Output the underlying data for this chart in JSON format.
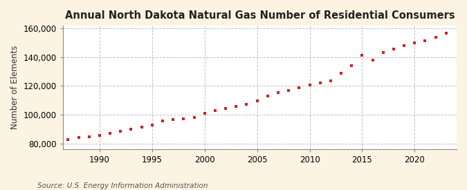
{
  "title": "Annual North Dakota Natural Gas Number of Residential Consumers",
  "ylabel": "Number of Elements",
  "source": "Source: U.S. Energy Information Administration",
  "background_color": "#fdf3e3",
  "plot_area_color": "#ffffff",
  "marker_color": "#cc2222",
  "grid_color": "#bbbbbb",
  "years": [
    1987,
    1988,
    1989,
    1990,
    1991,
    1992,
    1993,
    1994,
    1995,
    1996,
    1997,
    1998,
    1999,
    2000,
    2001,
    2002,
    2003,
    2004,
    2005,
    2006,
    2007,
    2008,
    2009,
    2010,
    2011,
    2012,
    2013,
    2014,
    2015,
    2016,
    2017,
    2018,
    2019,
    2020,
    2021,
    2022,
    2023
  ],
  "values": [
    82500,
    84000,
    84800,
    85800,
    87200,
    88600,
    90000,
    91500,
    93000,
    95500,
    96500,
    97200,
    98000,
    101000,
    103000,
    104500,
    105500,
    107000,
    109500,
    113000,
    115500,
    117000,
    118500,
    120500,
    122000,
    123500,
    129000,
    134000,
    141000,
    138000,
    143000,
    145500,
    148000,
    150000,
    151500,
    153500,
    156500
  ],
  "ylim": [
    76000,
    162000
  ],
  "yticks": [
    80000,
    100000,
    120000,
    140000,
    160000
  ],
  "xlim": [
    1986.5,
    2024
  ],
  "xticks": [
    1990,
    1995,
    2000,
    2005,
    2010,
    2015,
    2020
  ],
  "title_fontsize": 10.5,
  "label_fontsize": 8.5,
  "tick_fontsize": 8.5,
  "source_fontsize": 7.5
}
